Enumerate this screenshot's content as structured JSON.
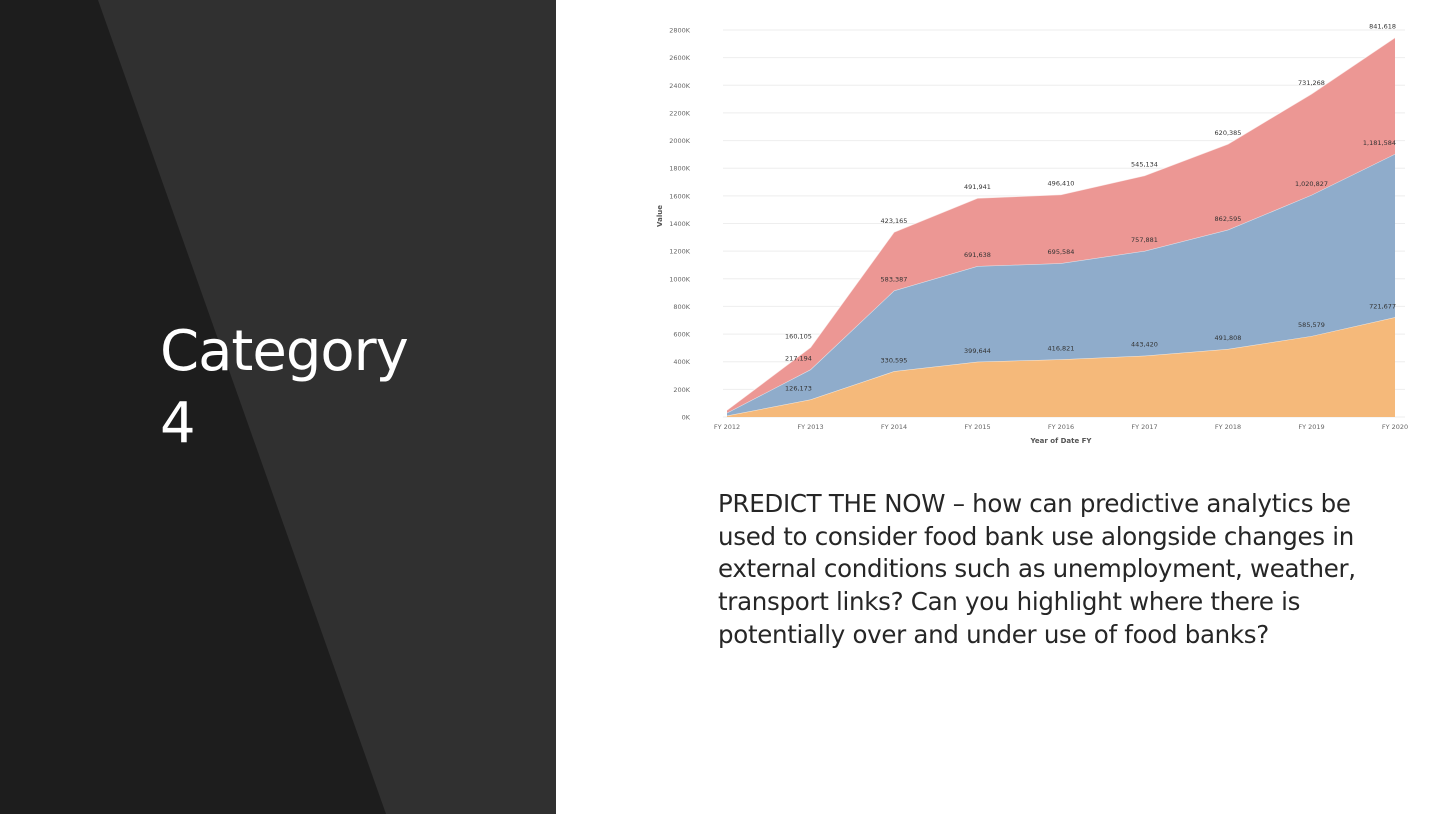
{
  "slide": {
    "title": "Category\n4",
    "body": "PREDICT THE NOW – how can predictive analytics be used to consider food bank use alongside changes in external conditions such as unemployment, weather, transport links? Can you highlight where there is potentially over and under use of food banks?"
  },
  "colors": {
    "left_panel": "#303030",
    "left_panel_dark": "#1d1d1d",
    "series_orange": "#f5b97a",
    "series_blue": "#8faccb",
    "series_red": "#ec9794"
  },
  "chart_data": {
    "type": "area",
    "stacked": true,
    "x": [
      "FY 2012",
      "FY 2013",
      "FY 2014",
      "FY 2015",
      "FY 2016",
      "FY 2017",
      "FY 2018",
      "FY 2019",
      "FY 2020"
    ],
    "xlabel": "Year of Date FY",
    "ylabel": "Value",
    "ylim": [
      0,
      2800000
    ],
    "yticks": [
      0,
      200000,
      400000,
      600000,
      800000,
      1000000,
      1200000,
      1400000,
      1600000,
      1800000,
      2000000,
      2200000,
      2400000,
      2600000,
      2800000
    ],
    "ytick_labels": [
      "0K",
      "200K",
      "400K",
      "600K",
      "800K",
      "1000K",
      "1200K",
      "1400K",
      "1600K",
      "1800K",
      "2000K",
      "2200K",
      "2400K",
      "2600K",
      "2800K"
    ],
    "grid": "horizontal",
    "legend": "none",
    "series": [
      {
        "color": "#f5b97a",
        "values": [
          10000,
          126173,
          330595,
          399644,
          416821,
          443420,
          491808,
          585579,
          721677
        ],
        "labels": [
          "",
          "126,173",
          "330,595",
          "399,644",
          "416,821",
          "443,420",
          "491,808",
          "585,579",
          "721,677"
        ]
      },
      {
        "color": "#8faccb",
        "values": [
          20000,
          217194,
          583387,
          691638,
          695584,
          757881,
          862595,
          1020827,
          1181584
        ],
        "labels": [
          "",
          "217,194",
          "583,387",
          "691,638",
          "695,584",
          "757,881",
          "862,595",
          "1,020,827",
          "1,181,584"
        ]
      },
      {
        "color": "#ec9794",
        "values": [
          20000,
          160105,
          423165,
          491941,
          496410,
          545134,
          620385,
          731268,
          841618
        ],
        "labels": [
          "",
          "160,105",
          "423,165",
          "491,941",
          "496,410",
          "545,134",
          "620,385",
          "731,268",
          "841,618"
        ]
      }
    ]
  }
}
